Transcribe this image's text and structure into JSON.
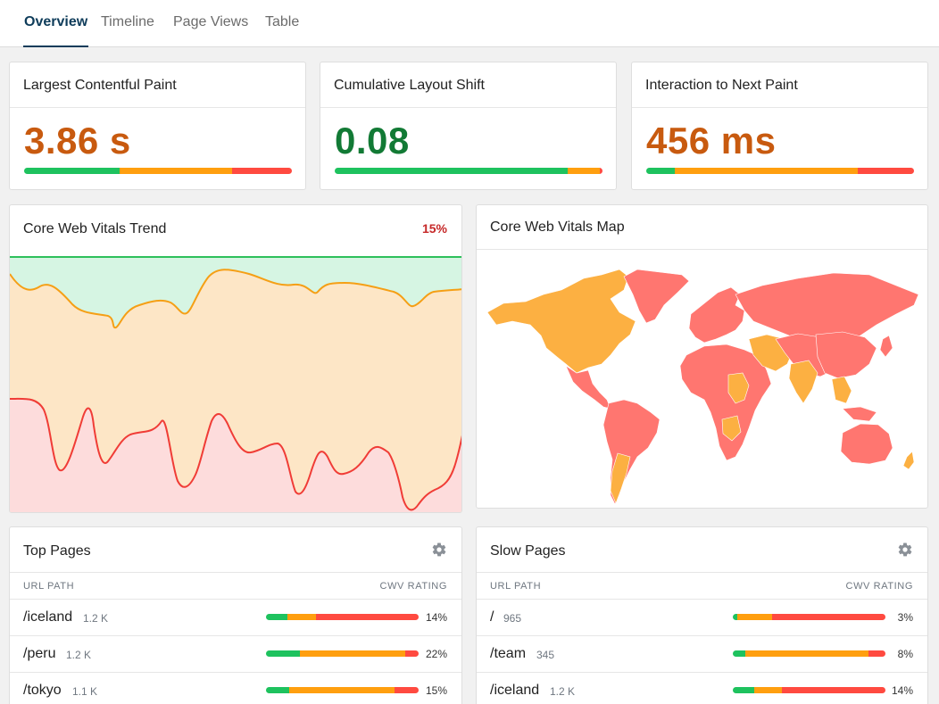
{
  "tabs": [
    {
      "label": "Overview",
      "active": true
    },
    {
      "label": "Timeline"
    },
    {
      "label": "Page Views"
    },
    {
      "label": "Table"
    }
  ],
  "colors": {
    "good": "#1ec25e",
    "needs_improvement": "#ff9f0f",
    "poor": "#ff4a40",
    "value_orange": "#c85a0f",
    "value_green": "#127a35"
  },
  "metrics": [
    {
      "title": "Largest Contentful Paint",
      "value": "3.86 s",
      "bar": [
        35.5,
        42,
        22.5
      ]
    },
    {
      "title": "Cumulative Layout Shift",
      "value": "0.08",
      "bar": [
        87,
        12,
        1
      ]
    },
    {
      "title": "Interaction to Next Paint",
      "value": "456 ms",
      "bar": [
        10.5,
        68.5,
        21
      ]
    }
  ],
  "trend": {
    "title": "Core Web Vitals Trend",
    "percent": "15%"
  },
  "map": {
    "title": "Core Web Vitals Map"
  },
  "top_pages": {
    "title": "Top Pages",
    "col_path": "URL PATH",
    "col_rating": "CWV RATING",
    "rows": [
      {
        "path": "/iceland",
        "count": "1.2 K",
        "pct": "14%",
        "bar": [
          14,
          19,
          67
        ]
      },
      {
        "path": "/peru",
        "count": "1.2 K",
        "pct": "22%",
        "bar": [
          22,
          69,
          9
        ]
      },
      {
        "path": "/tokyo",
        "count": "1.1 K",
        "pct": "15%",
        "bar": [
          15,
          69,
          16
        ]
      }
    ]
  },
  "slow_pages": {
    "title": "Slow Pages",
    "col_path": "URL PATH",
    "col_rating": "CWV RATING",
    "rows": [
      {
        "path": "/",
        "count": "965",
        "pct": "3%",
        "bar": [
          3,
          23,
          74
        ]
      },
      {
        "path": "/team",
        "count": "345",
        "pct": "8%",
        "bar": [
          8,
          81,
          11
        ]
      },
      {
        "path": "/iceland",
        "count": "1.2 K",
        "pct": "14%",
        "bar": [
          14,
          18,
          68
        ]
      }
    ]
  }
}
